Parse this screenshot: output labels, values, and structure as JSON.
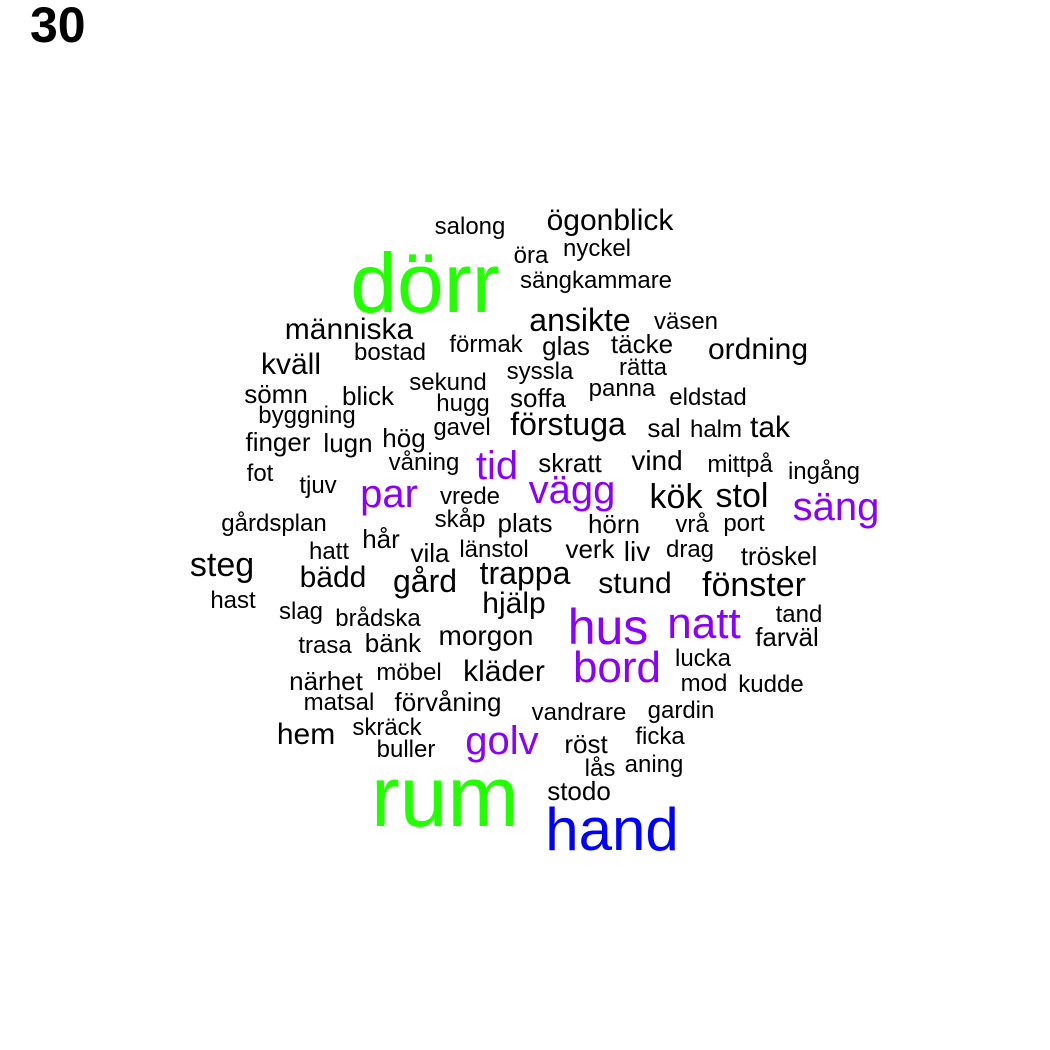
{
  "page_number": "30",
  "colors": {
    "tier1": "#22ff00",
    "tier2": "#0000ff",
    "tier3": "#8a00ff",
    "tier4": "#000000"
  },
  "words": [
    {
      "text": "dörr",
      "tier": "tier1"
    },
    {
      "text": "rum",
      "tier": "tier1"
    },
    {
      "text": "hand",
      "tier": "tier2"
    },
    {
      "text": "hus",
      "tier": "tier3"
    },
    {
      "text": "natt",
      "tier": "tier3"
    },
    {
      "text": "bord",
      "tier": "tier3"
    },
    {
      "text": "golv",
      "tier": "tier3"
    },
    {
      "text": "säng",
      "tier": "tier3"
    },
    {
      "text": "vägg",
      "tier": "tier3"
    },
    {
      "text": "tid",
      "tier": "tier3"
    },
    {
      "text": "par",
      "tier": "tier3"
    },
    {
      "text": "ögonblick",
      "tier": "tier4"
    },
    {
      "text": "salong",
      "tier": "tier4"
    },
    {
      "text": "nyckel",
      "tier": "tier4"
    },
    {
      "text": "öra",
      "tier": "tier4"
    },
    {
      "text": "sängkammare",
      "tier": "tier4"
    },
    {
      "text": "ansikte",
      "tier": "tier4"
    },
    {
      "text": "väsen",
      "tier": "tier4"
    },
    {
      "text": "människa",
      "tier": "tier4"
    },
    {
      "text": "förmak",
      "tier": "tier4"
    },
    {
      "text": "glas",
      "tier": "tier4"
    },
    {
      "text": "täcke",
      "tier": "tier4"
    },
    {
      "text": "ordning",
      "tier": "tier4"
    },
    {
      "text": "bostad",
      "tier": "tier4"
    },
    {
      "text": "kväll",
      "tier": "tier4"
    },
    {
      "text": "syssla",
      "tier": "tier4"
    },
    {
      "text": "rätta",
      "tier": "tier4"
    },
    {
      "text": "sekund",
      "tier": "tier4"
    },
    {
      "text": "panna",
      "tier": "tier4"
    },
    {
      "text": "sömn",
      "tier": "tier4"
    },
    {
      "text": "blick",
      "tier": "tier4"
    },
    {
      "text": "eldstad",
      "tier": "tier4"
    },
    {
      "text": "hugg",
      "tier": "tier4"
    },
    {
      "text": "soffa",
      "tier": "tier4"
    },
    {
      "text": "byggning",
      "tier": "tier4"
    },
    {
      "text": "förstuga",
      "tier": "tier4"
    },
    {
      "text": "gavel",
      "tier": "tier4"
    },
    {
      "text": "sal",
      "tier": "tier4"
    },
    {
      "text": "halm",
      "tier": "tier4"
    },
    {
      "text": "tak",
      "tier": "tier4"
    },
    {
      "text": "finger",
      "tier": "tier4"
    },
    {
      "text": "lugn",
      "tier": "tier4"
    },
    {
      "text": "hög",
      "tier": "tier4"
    },
    {
      "text": "våning",
      "tier": "tier4"
    },
    {
      "text": "skratt",
      "tier": "tier4"
    },
    {
      "text": "vind",
      "tier": "tier4"
    },
    {
      "text": "mittpå",
      "tier": "tier4"
    },
    {
      "text": "ingång",
      "tier": "tier4"
    },
    {
      "text": "fot",
      "tier": "tier4"
    },
    {
      "text": "tjuv",
      "tier": "tier4"
    },
    {
      "text": "vrede",
      "tier": "tier4"
    },
    {
      "text": "kök",
      "tier": "tier4"
    },
    {
      "text": "stol",
      "tier": "tier4"
    },
    {
      "text": "gårdsplan",
      "tier": "tier4"
    },
    {
      "text": "skåp",
      "tier": "tier4"
    },
    {
      "text": "plats",
      "tier": "tier4"
    },
    {
      "text": "hörn",
      "tier": "tier4"
    },
    {
      "text": "vrå",
      "tier": "tier4"
    },
    {
      "text": "port",
      "tier": "tier4"
    },
    {
      "text": "hår",
      "tier": "tier4"
    },
    {
      "text": "hatt",
      "tier": "tier4"
    },
    {
      "text": "vila",
      "tier": "tier4"
    },
    {
      "text": "länstol",
      "tier": "tier4"
    },
    {
      "text": "verk",
      "tier": "tier4"
    },
    {
      "text": "liv",
      "tier": "tier4"
    },
    {
      "text": "drag",
      "tier": "tier4"
    },
    {
      "text": "tröskel",
      "tier": "tier4"
    },
    {
      "text": "steg",
      "tier": "tier4"
    },
    {
      "text": "bädd",
      "tier": "tier4"
    },
    {
      "text": "gård",
      "tier": "tier4"
    },
    {
      "text": "trappa",
      "tier": "tier4"
    },
    {
      "text": "stund",
      "tier": "tier4"
    },
    {
      "text": "fönster",
      "tier": "tier4"
    },
    {
      "text": "hast",
      "tier": "tier4"
    },
    {
      "text": "hjälp",
      "tier": "tier4"
    },
    {
      "text": "slag",
      "tier": "tier4"
    },
    {
      "text": "brådska",
      "tier": "tier4"
    },
    {
      "text": "tand",
      "tier": "tier4"
    },
    {
      "text": "trasa",
      "tier": "tier4"
    },
    {
      "text": "bänk",
      "tier": "tier4"
    },
    {
      "text": "morgon",
      "tier": "tier4"
    },
    {
      "text": "farväl",
      "tier": "tier4"
    },
    {
      "text": "lucka",
      "tier": "tier4"
    },
    {
      "text": "närhet",
      "tier": "tier4"
    },
    {
      "text": "möbel",
      "tier": "tier4"
    },
    {
      "text": "kläder",
      "tier": "tier4"
    },
    {
      "text": "mod",
      "tier": "tier4"
    },
    {
      "text": "kudde",
      "tier": "tier4"
    },
    {
      "text": "matsal",
      "tier": "tier4"
    },
    {
      "text": "förvåning",
      "tier": "tier4"
    },
    {
      "text": "vandrare",
      "tier": "tier4"
    },
    {
      "text": "gardin",
      "tier": "tier4"
    },
    {
      "text": "hem",
      "tier": "tier4"
    },
    {
      "text": "skräck",
      "tier": "tier4"
    },
    {
      "text": "buller",
      "tier": "tier4"
    },
    {
      "text": "röst",
      "tier": "tier4"
    },
    {
      "text": "ficka",
      "tier": "tier4"
    },
    {
      "text": "lås",
      "tier": "tier4"
    },
    {
      "text": "aning",
      "tier": "tier4"
    },
    {
      "text": "stodo",
      "tier": "tier4"
    }
  ]
}
